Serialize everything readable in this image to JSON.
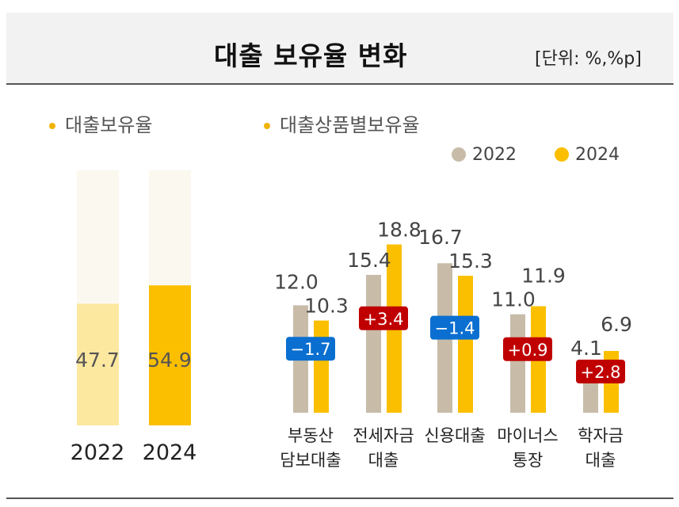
{
  "title": "대출 보유율 변화",
  "unit": "[단위: %,%p]",
  "colors": {
    "y2022": "#c8bca9",
    "y2024": "#fbbf00",
    "y2022_light": "#fde8a0",
    "track": "#fbf8ef",
    "up": "#c00000",
    "down": "#0a6fd0",
    "bullet": "#f0b400"
  },
  "chart_data": [
    {
      "type": "bar",
      "title": "대출보유율",
      "categories": [
        "2022",
        "2024"
      ],
      "values": [
        47.7,
        54.9
      ],
      "value_labels": [
        "47.7",
        "54.9"
      ],
      "ylim": [
        0,
        100
      ]
    },
    {
      "type": "bar",
      "title": "대출상품별보유율",
      "legend": [
        "2022",
        "2024"
      ],
      "legend_position": "top-right",
      "categories": [
        [
          "부동산",
          "담보대출"
        ],
        [
          "전세자금",
          "대출"
        ],
        [
          "신용대출",
          ""
        ],
        [
          "마이너스",
          "통장"
        ],
        [
          "학자금",
          "대출"
        ]
      ],
      "series": [
        {
          "name": "2022",
          "values": [
            12.0,
            15.4,
            16.7,
            11.0,
            4.1
          ],
          "labels": [
            "12.0",
            "15.4",
            "16.7",
            "11.0",
            "4.1"
          ]
        },
        {
          "name": "2024",
          "values": [
            10.3,
            18.8,
            15.3,
            11.9,
            6.9
          ],
          "labels": [
            "10.3",
            "18.8",
            "15.3",
            "11.9",
            "6.9"
          ]
        }
      ],
      "changes": [
        "-1.7",
        "+3.4",
        "-1.4",
        "+0.9",
        "+2.8"
      ]
    }
  ]
}
